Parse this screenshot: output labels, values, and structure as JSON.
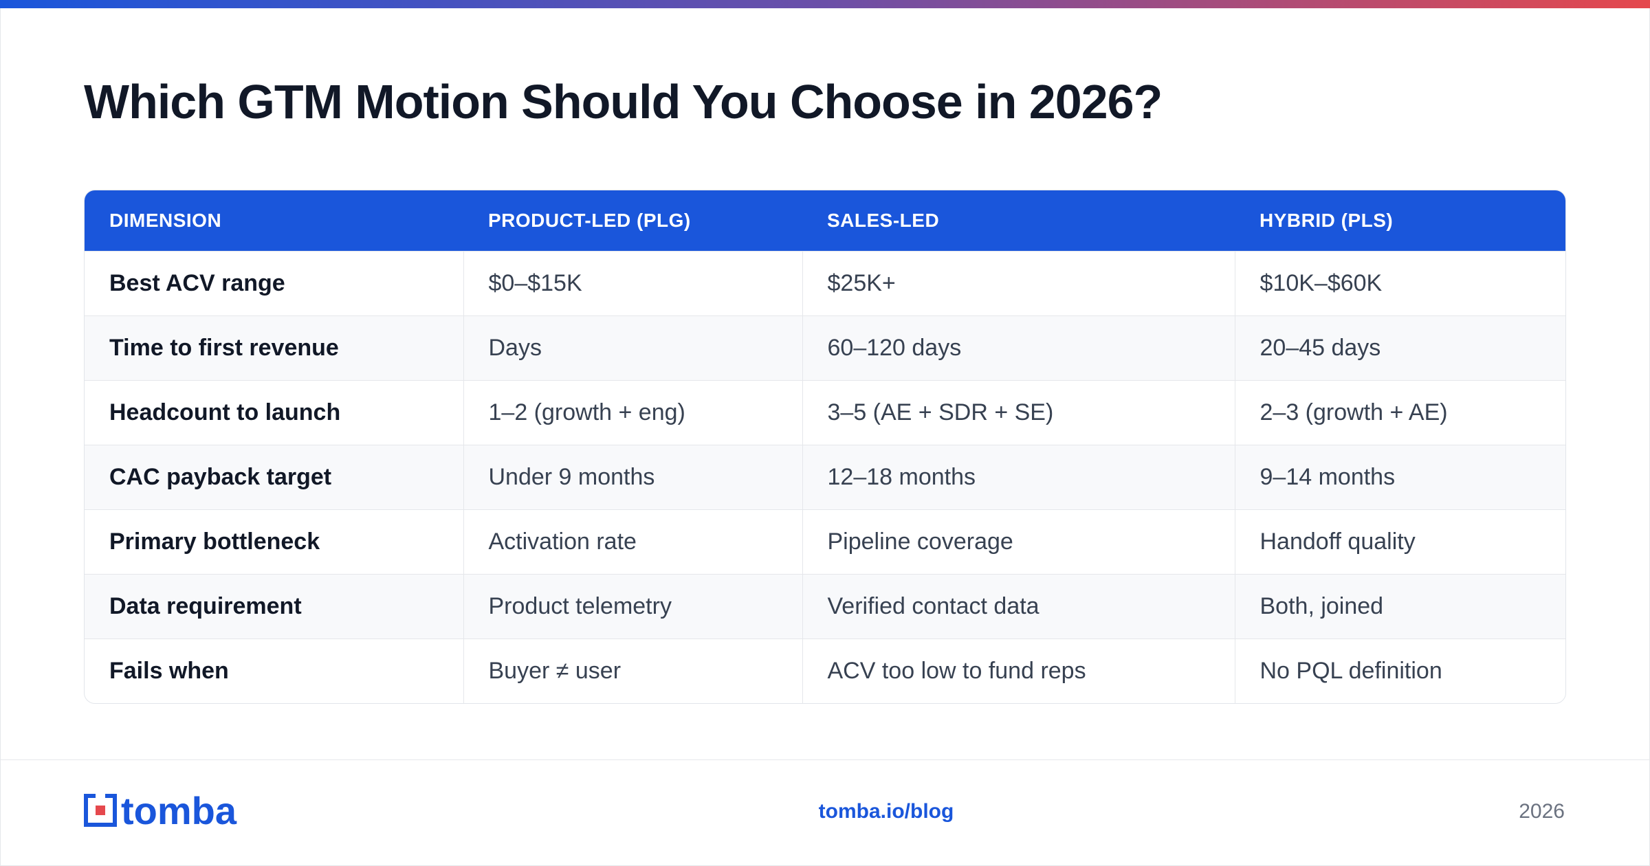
{
  "header": {
    "title": "Which GTM Motion Should You Choose in 2026?"
  },
  "table": {
    "headers": [
      "DIMENSION",
      "PRODUCT-LED (PLG)",
      "SALES-LED",
      "HYBRID (PLS)"
    ],
    "rows": [
      [
        "Best ACV range",
        "$0–$15K",
        "$25K+",
        "$10K–$60K"
      ],
      [
        "Time to first revenue",
        "Days",
        "60–120 days",
        "20–45 days"
      ],
      [
        "Headcount to launch",
        "1–2 (growth + eng)",
        "3–5 (AE + SDR + SE)",
        "2–3 (growth + AE)"
      ],
      [
        "CAC payback target",
        "Under 9 months",
        "12–18 months",
        "9–14 months"
      ],
      [
        "Primary bottleneck",
        "Activation rate",
        "Pipeline coverage",
        "Handoff quality"
      ],
      [
        "Data requirement",
        "Product telemetry",
        "Verified contact data",
        "Both, joined"
      ],
      [
        "Fails when",
        "Buyer ≠ user",
        "ACV too low to fund reps",
        "No PQL definition"
      ]
    ]
  },
  "footer": {
    "logo": "tomba",
    "url": "tomba.io/blog",
    "year": "2026"
  }
}
